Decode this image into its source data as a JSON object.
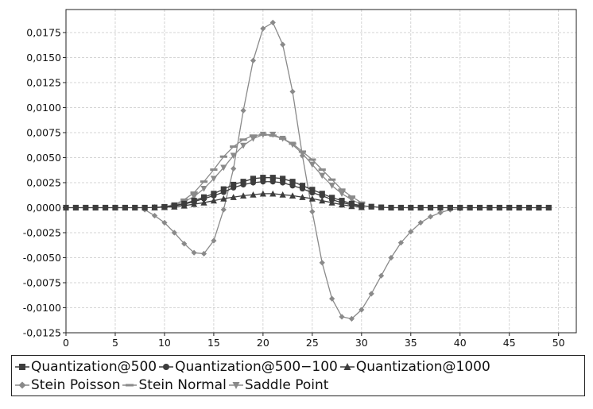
{
  "chart_data": {
    "type": "line",
    "title": "",
    "xlabel": "",
    "ylabel": "",
    "xlim": [
      0,
      51.8
    ],
    "ylim": [
      -0.0125,
      0.0198
    ],
    "grid": true,
    "legend_position": "bottom",
    "x_ticks": [
      0,
      5,
      10,
      15,
      20,
      25,
      30,
      35,
      40,
      45,
      50
    ],
    "x_tick_labels": [
      "0",
      "5",
      "10",
      "15",
      "20",
      "25",
      "30",
      "35",
      "40",
      "45",
      "50"
    ],
    "y_ticks": [
      -0.0125,
      -0.01,
      -0.0075,
      -0.005,
      -0.0025,
      0,
      0.0025,
      0.005,
      0.0075,
      0.01,
      0.0125,
      0.015,
      0.0175
    ],
    "y_tick_labels": [
      "-0,0125",
      "-0,0100",
      "-0,0075",
      "-0,0050",
      "-0,0025",
      "0,0000",
      "0,0025",
      "0,0050",
      "0,0075",
      "0,0100",
      "0,0125",
      "0,0150",
      "0,0175"
    ],
    "series": [
      {
        "name": "Quantization@500",
        "color": "#3d3d3d",
        "marker": "square",
        "x": [
          0,
          1,
          2,
          3,
          4,
          5,
          6,
          7,
          8,
          9,
          10,
          11,
          12,
          13,
          14,
          15,
          16,
          17,
          18,
          19,
          20,
          21,
          22,
          23,
          24,
          25,
          26,
          27,
          28,
          29,
          30,
          31,
          32,
          33,
          34,
          35,
          36,
          37,
          38,
          39,
          40,
          41,
          42,
          43,
          44,
          45,
          46,
          47,
          48,
          49
        ],
        "y": [
          0,
          0,
          0,
          0,
          0,
          0,
          0,
          0,
          0,
          2e-05,
          8e-05,
          0.00022,
          0.0004,
          0.0007,
          0.00105,
          0.0014,
          0.00185,
          0.0023,
          0.0026,
          0.0029,
          0.003,
          0.003,
          0.0029,
          0.0026,
          0.0022,
          0.0018,
          0.0014,
          0.001,
          0.0007,
          0.0004,
          0.0002,
          0.0001,
          3e-05,
          0,
          0,
          0,
          0,
          0,
          0,
          0,
          0,
          0,
          0,
          0,
          0,
          0,
          0,
          0,
          0,
          0
        ]
      },
      {
        "name": "Quantization@500−100",
        "color": "#3d3d3d",
        "marker": "circle",
        "x": [
          9,
          10,
          11,
          12,
          13,
          14,
          15,
          16,
          17,
          18,
          19,
          20,
          21,
          22,
          23,
          24,
          25,
          26,
          27,
          28,
          29,
          30
        ],
        "y": [
          2e-05,
          7e-05,
          0.0002,
          0.00035,
          0.0006,
          0.0009,
          0.0012,
          0.00155,
          0.002,
          0.0023,
          0.0025,
          0.0026,
          0.0026,
          0.0025,
          0.0022,
          0.0019,
          0.0015,
          0.0012,
          0.0008,
          0.0005,
          0.0003,
          0.00015
        ]
      },
      {
        "name": "Quantization@1000",
        "color": "#3d3d3d",
        "marker": "triangle",
        "x": [
          9,
          10,
          11,
          12,
          13,
          14,
          15,
          16,
          17,
          18,
          19,
          20,
          21,
          22,
          23,
          24,
          25,
          26,
          27,
          28,
          29,
          30
        ],
        "y": [
          2e-05,
          5e-05,
          0.0001,
          0.0002,
          0.00035,
          0.0005,
          0.0007,
          0.0009,
          0.00105,
          0.0012,
          0.0013,
          0.0014,
          0.0014,
          0.0013,
          0.0012,
          0.00105,
          0.0009,
          0.0007,
          0.0005,
          0.0003,
          0.00015,
          5e-05
        ]
      },
      {
        "name": "Stein Poisson",
        "color": "#8a8a8a",
        "marker": "diamond",
        "x": [
          8,
          9,
          10,
          11,
          12,
          13,
          14,
          15,
          16,
          17,
          18,
          19,
          20,
          21,
          22,
          23,
          24,
          25,
          26,
          27,
          28,
          29,
          30,
          31,
          32,
          33,
          34,
          35,
          36,
          37,
          38,
          39,
          40
        ],
        "y": [
          -0.0002,
          -0.0008,
          -0.0015,
          -0.0025,
          -0.0036,
          -0.0045,
          -0.0046,
          -0.0033,
          -0.0002,
          0.0039,
          0.0097,
          0.0147,
          0.0179,
          0.0185,
          0.0163,
          0.0116,
          0.0052,
          -0.0004,
          -0.0055,
          -0.0091,
          -0.0109,
          -0.0111,
          -0.0102,
          -0.0086,
          -0.0068,
          -0.005,
          -0.0035,
          -0.0024,
          -0.0015,
          -0.0009,
          -0.0005,
          -0.0002,
          -0.0001
        ]
      },
      {
        "name": "Stein Normal",
        "color": "#8a8a8a",
        "marker": "dash",
        "x": [
          10,
          11,
          12,
          13,
          14,
          15,
          16,
          17,
          18,
          19,
          20,
          21,
          22,
          23,
          24,
          25,
          26,
          27,
          28,
          29,
          30
        ],
        "y": [
          0.0001,
          0.0003,
          0.0008,
          0.0015,
          0.0026,
          0.0038,
          0.0051,
          0.0061,
          0.0068,
          0.0072,
          0.0073,
          0.0072,
          0.0069,
          0.0064,
          0.0056,
          0.0048,
          0.0038,
          0.0028,
          0.0018,
          0.0011,
          0.0005
        ]
      },
      {
        "name": "Saddle Point",
        "color": "#8a8a8a",
        "marker": "triangle-down",
        "x": [
          10,
          11,
          12,
          13,
          14,
          15,
          16,
          17,
          18,
          19,
          20,
          21,
          22,
          23,
          24,
          25,
          26,
          27,
          28,
          29,
          30
        ],
        "y": [
          5e-05,
          0.00025,
          0.0006,
          0.0011,
          0.0019,
          0.0029,
          0.004,
          0.0052,
          0.0062,
          0.0069,
          0.0073,
          0.0073,
          0.0069,
          0.0063,
          0.0054,
          0.0043,
          0.0032,
          0.0022,
          0.0014,
          0.0008,
          0.0003
        ]
      }
    ]
  }
}
